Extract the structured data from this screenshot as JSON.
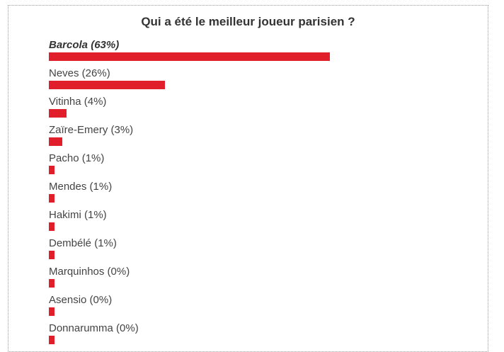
{
  "poll": {
    "title": "Qui a été le meilleur joueur parisien ?"
  },
  "chart_data": {
    "type": "bar",
    "orientation": "horizontal",
    "title": "Qui a été le meilleur joueur parisien ?",
    "unit": "%",
    "bar_color": "#e01f2b",
    "highlight": "Barcola",
    "categories": [
      "Barcola",
      "Neves",
      "Vitinha",
      "Zaïre-Emery",
      "Pacho",
      "Mendes",
      "Hakimi",
      "Dembélé",
      "Marquinhos",
      "Asensio",
      "Donnarumma"
    ],
    "values": [
      63,
      26,
      4,
      3,
      1,
      1,
      1,
      1,
      0,
      0,
      0
    ],
    "labels": [
      "Barcola (63%)",
      "Neves (26%)",
      "Vitinha (4%)",
      "Zaïre-Emery (3%)",
      "Pacho (1%)",
      "Mendes (1%)",
      "Hakimi (1%)",
      "Dembélé (1%)",
      "Marquinhos (0%)",
      "Asensio (0%)",
      "Donnarumma (0%)"
    ]
  }
}
